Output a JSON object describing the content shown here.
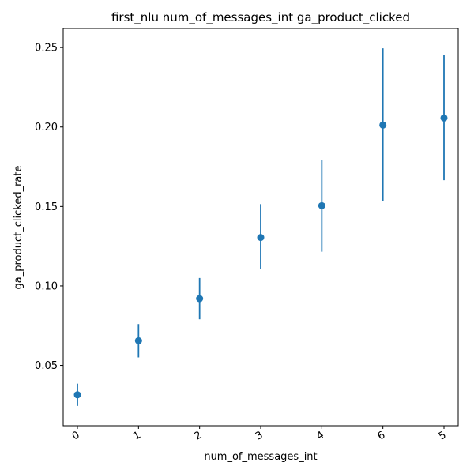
{
  "chart_data": {
    "type": "scatter",
    "title": "first_nlu num_of_messages_int ga_product_clicked",
    "xlabel": "num_of_messages_int",
    "ylabel": "ga_product_clicked_rate",
    "categories": [
      "0",
      "1",
      "2",
      "3",
      "4",
      "6",
      "5"
    ],
    "ylim": [
      0.012,
      0.262
    ],
    "yticks": [
      "0.05",
      "0.10",
      "0.15",
      "0.20",
      "0.25"
    ],
    "grid": false,
    "series": [
      {
        "values": [
          0.0315,
          0.0655,
          0.092,
          0.1305,
          0.1505,
          0.2012,
          0.2057
        ],
        "err_low": [
          0.0245,
          0.055,
          0.079,
          0.1105,
          0.1215,
          0.1535,
          0.1665
        ],
        "err_high": [
          0.0385,
          0.076,
          0.105,
          0.1515,
          0.179,
          0.2495,
          0.2455
        ]
      }
    ],
    "colors": {
      "marker": "#1f77b4"
    }
  }
}
